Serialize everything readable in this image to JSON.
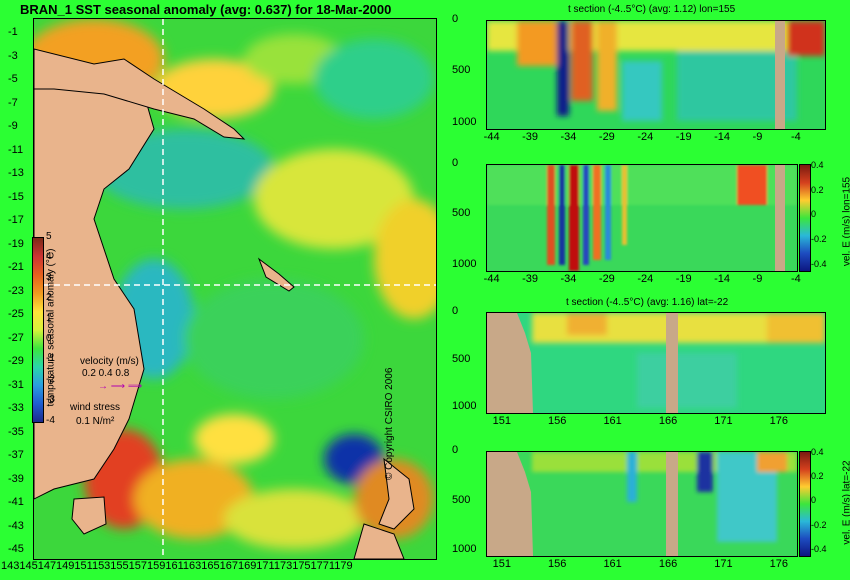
{
  "header": {
    "main_title": "BRAN_1 SST seasonal anomaly (avg: 0.637) for 18-Mar-2000",
    "copyright": "© Copyright CSIRO 2006"
  },
  "legend": {
    "colorbar_label": "temperature seasonal anomaly (°C)",
    "colorbar_ticks": [
      "5",
      "4",
      "3",
      "2",
      "1",
      "0",
      "-1",
      "-2",
      "-3",
      "-4"
    ],
    "velocity_label": "velocity (m/s)",
    "velocity_values": "0.2 0.4 0.8",
    "wind_label": "wind stress",
    "wind_value": "0.1 N/m²"
  },
  "map": {
    "lat_ticks": [
      "-1",
      "-3",
      "-5",
      "-7",
      "-9",
      "-11",
      "-13",
      "-15",
      "-17",
      "-19",
      "-21",
      "-23",
      "-25",
      "-27",
      "-29",
      "-31",
      "-33",
      "-35",
      "-37",
      "-39",
      "-41",
      "-43",
      "-45"
    ],
    "lon_ticks": "1431451471491511531551571591611631651671691711731751771179"
  },
  "panels": {
    "p1": {
      "title": "t section (-4..5°C) (avg: 1.12) lon=155",
      "y_ticks": [
        "0",
        "500",
        "1000"
      ],
      "x_ticks": [
        "-44",
        "-39",
        "-34",
        "-29",
        "-24",
        "-19",
        "-14",
        "-9",
        "-4"
      ]
    },
    "p2": {
      "y_ticks": [
        "0",
        "500",
        "1000"
      ],
      "x_ticks": [
        "-44",
        "-39",
        "-34",
        "-29",
        "-24",
        "-19",
        "-14",
        "-9",
        "-4"
      ],
      "colorbar_label": "vel. E (m/s) lon=155",
      "colorbar_ticks": [
        "0.4",
        "0.2",
        "0",
        "-0.2",
        "-0.4"
      ]
    },
    "p3": {
      "title": "t section (-4..5°C) (avg: 1.16) lat=-22",
      "y_ticks": [
        "0",
        "500",
        "1000"
      ],
      "x_ticks": [
        "151",
        "156",
        "161",
        "166",
        "171",
        "176"
      ]
    },
    "p4": {
      "y_ticks": [
        "0",
        "500",
        "1000"
      ],
      "x_ticks": [
        "151",
        "156",
        "161",
        "166",
        "171",
        "176"
      ],
      "colorbar_label": "vel. E (m/s) lat=-22",
      "colorbar_ticks": [
        "0.4",
        "0.2",
        "0",
        "-0.2",
        "-0.4"
      ]
    }
  },
  "chart_data": [
    {
      "type": "heatmap",
      "title": "BRAN_1 SST seasonal anomaly (avg: 0.637) for 18-Mar-2000",
      "xlim": [
        143,
        180
      ],
      "ylim": [
        -45,
        0
      ],
      "clim": [
        -4,
        5
      ]
    },
    {
      "type": "heatmap",
      "title": "t section (-4..5°C) (avg: 1.12) lon=155",
      "xlim": [
        -45,
        -1
      ],
      "ylim": [
        1050,
        0
      ],
      "clim": [
        -4,
        5
      ]
    },
    {
      "type": "heatmap",
      "xlim": [
        -45,
        -1
      ],
      "ylim": [
        1050,
        0
      ],
      "clim": [
        -0.4,
        0.4
      ]
    },
    {
      "type": "heatmap",
      "title": "t section (-4..5°C) (avg: 1.16) lat=-22",
      "xlim": [
        149.5,
        180
      ],
      "ylim": [
        1050,
        0
      ],
      "clim": [
        -4,
        5
      ]
    },
    {
      "type": "heatmap",
      "xlim": [
        149.5,
        180
      ],
      "ylim": [
        1050,
        0
      ],
      "clim": [
        -0.4,
        0.4
      ]
    }
  ],
  "colors": {
    "background": "#2bff33",
    "land": "#e9b48c",
    "section_land": "#c8a888"
  }
}
